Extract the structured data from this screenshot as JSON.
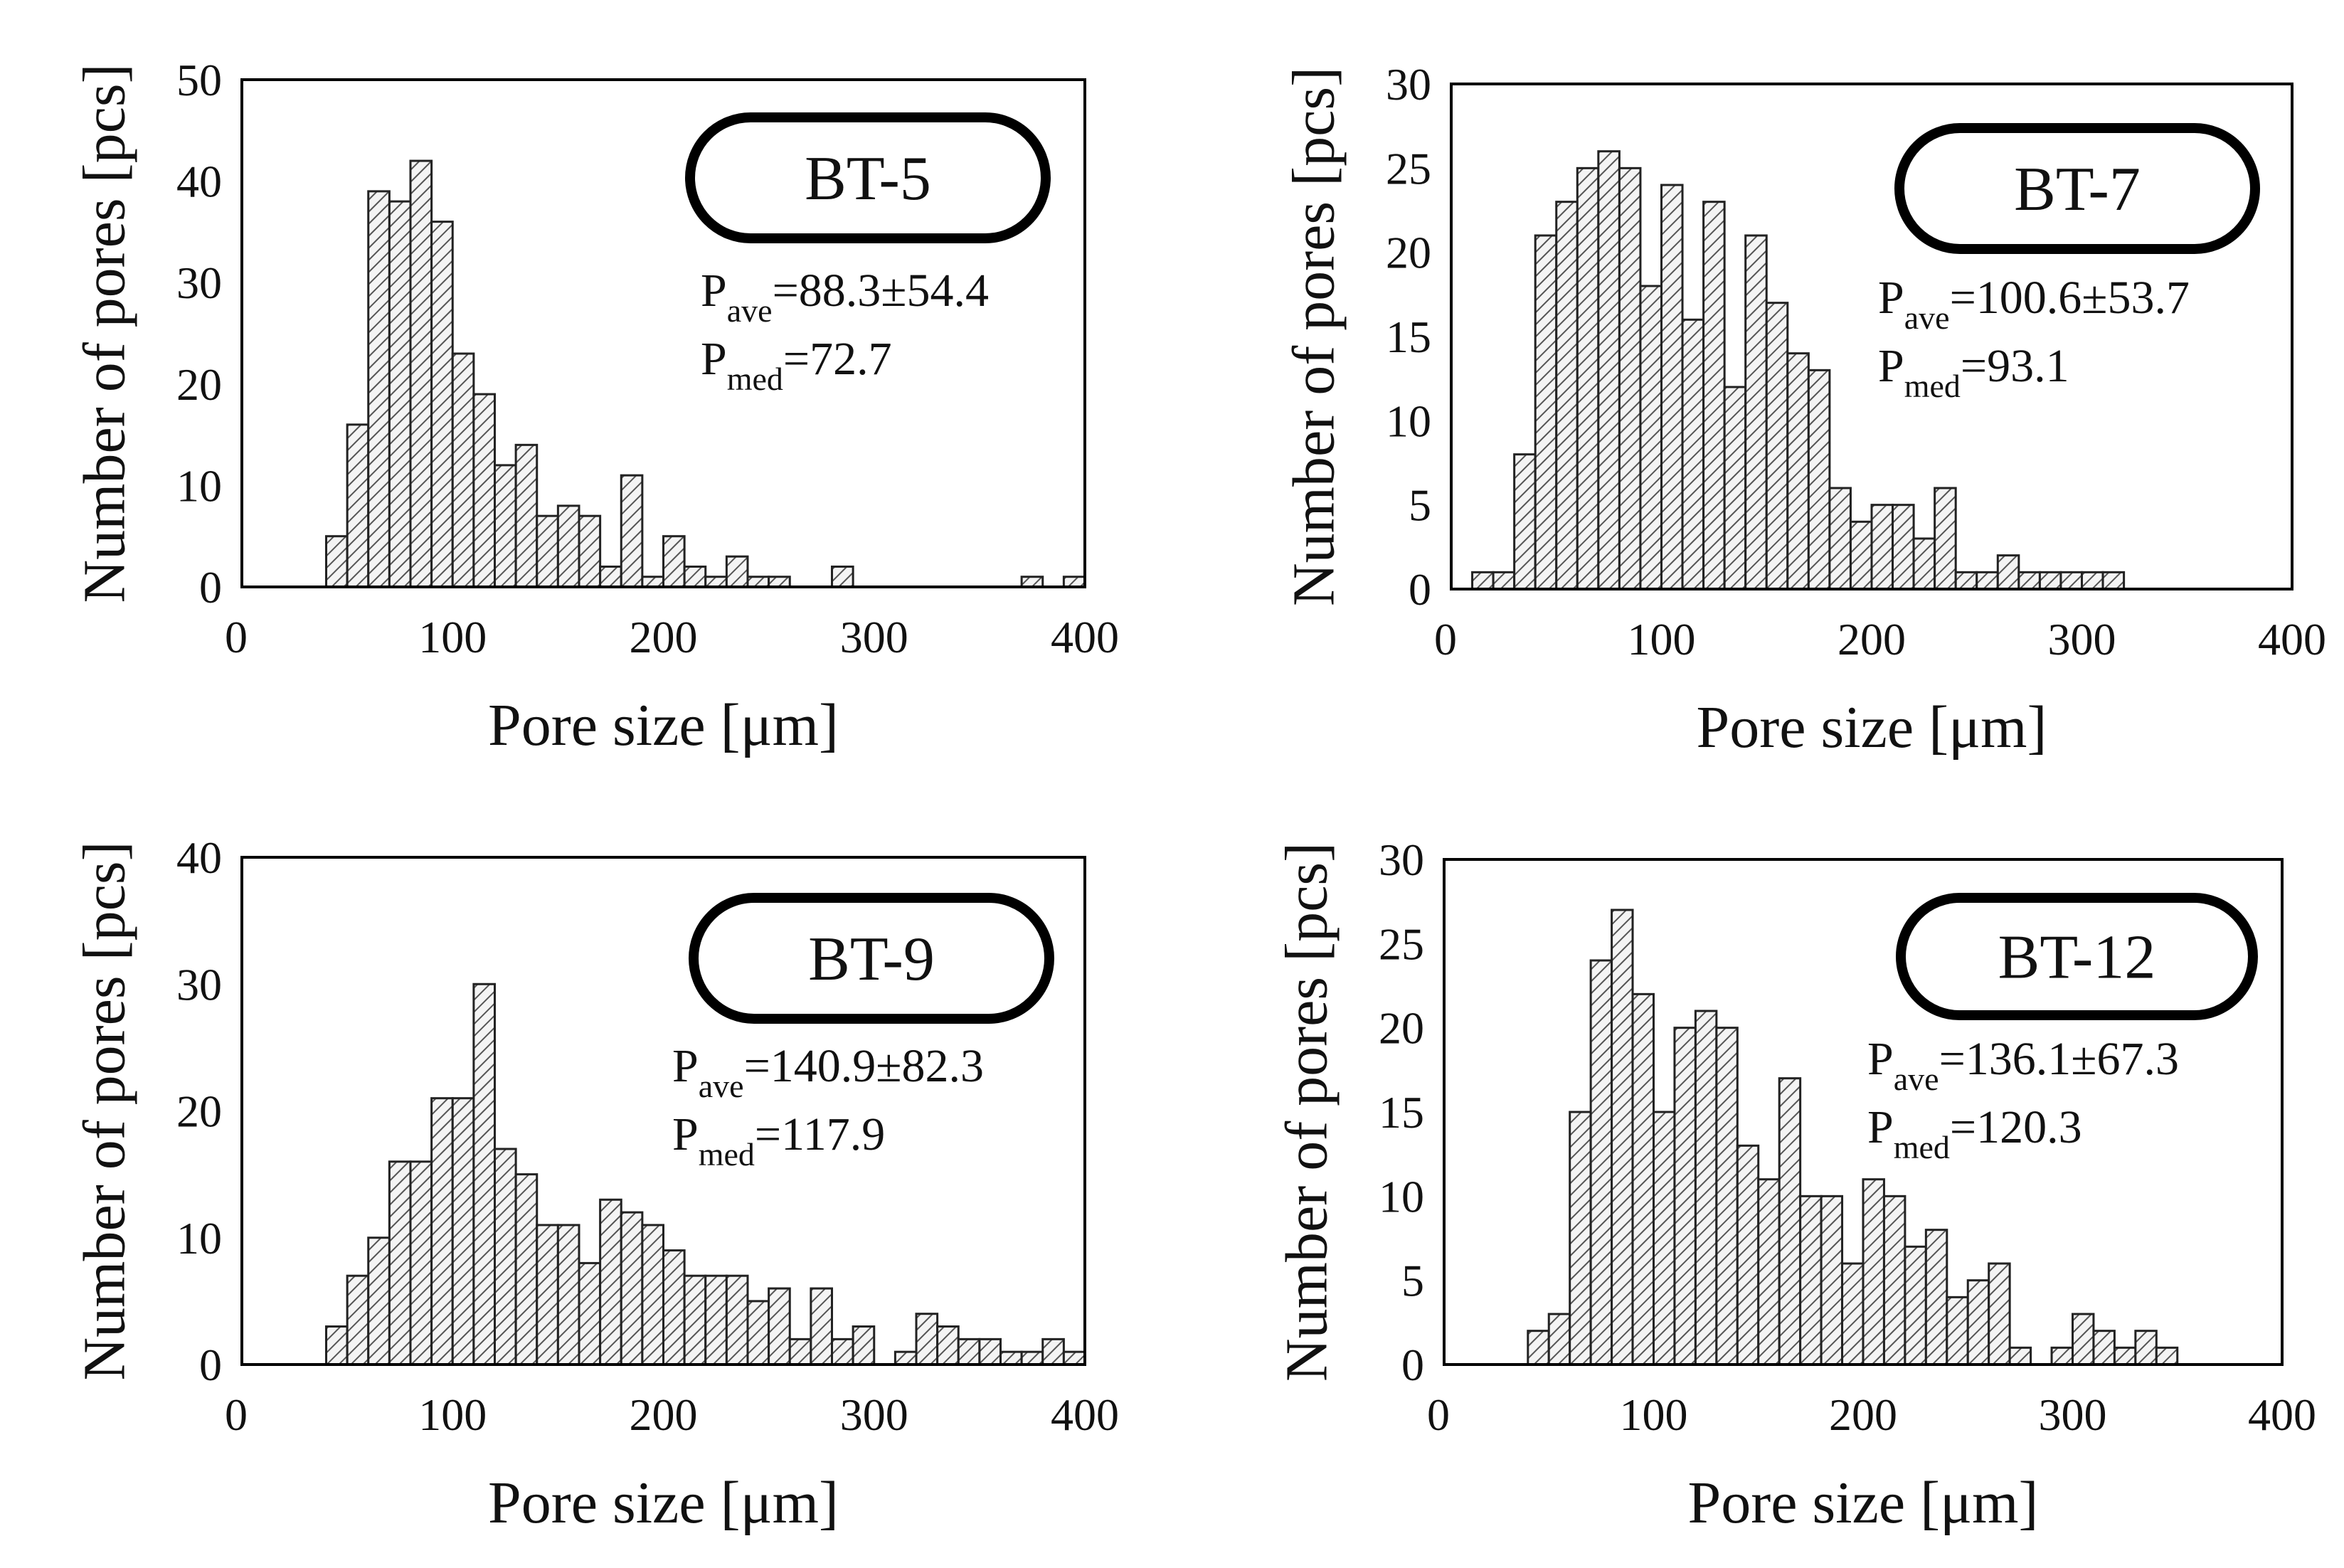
{
  "figure": {
    "hatch_color": "#555555",
    "bar_fill": "#f4f4f4",
    "frame_color": "#000000"
  },
  "chart_data": [
    {
      "type": "bar",
      "title": "BT-5",
      "label_box": "BT-5",
      "xlabel": "Pore size [μm]",
      "ylabel": "Number of pores [pcs]",
      "xlim": [
        0,
        400
      ],
      "ylim": [
        0,
        50
      ],
      "xticks": [
        "0",
        "100",
        "200",
        "300",
        "400"
      ],
      "yticks": [
        "0",
        "10",
        "20",
        "30",
        "40",
        "50"
      ],
      "bin_width": 10,
      "bin_starts": [
        40,
        50,
        60,
        70,
        80,
        90,
        100,
        110,
        120,
        130,
        140,
        150,
        160,
        170,
        180,
        190,
        200,
        210,
        220,
        230,
        240,
        250,
        280,
        370,
        390
      ],
      "values": [
        5,
        16,
        39,
        38,
        42,
        36,
        23,
        19,
        12,
        14,
        7,
        8,
        7,
        2,
        11,
        1,
        5,
        2,
        1,
        3,
        1,
        1,
        2,
        1,
        1
      ],
      "stats": {
        "ave_label": "P",
        "ave_sub": "ave",
        "ave_value": "=88.3±54.4",
        "med_label": "P",
        "med_sub": "med",
        "med_value": "=72.7"
      }
    },
    {
      "type": "bar",
      "title": "BT-7",
      "label_box": "BT-7",
      "xlabel": "Pore size [μm]",
      "ylabel": "Number of pores [pcs]",
      "xlim": [
        0,
        400
      ],
      "ylim": [
        0,
        30
      ],
      "xticks": [
        "0",
        "100",
        "200",
        "300",
        "400"
      ],
      "yticks": [
        "0",
        "5",
        "10",
        "15",
        "20",
        "25",
        "30"
      ],
      "bin_width": 10,
      "bin_starts": [
        10,
        20,
        30,
        40,
        50,
        60,
        70,
        80,
        90,
        100,
        110,
        120,
        130,
        140,
        150,
        160,
        170,
        180,
        190,
        200,
        210,
        220,
        230,
        240,
        250,
        260,
        270,
        280,
        290,
        300,
        310
      ],
      "values": [
        1,
        1,
        8,
        21,
        23,
        25,
        26,
        25,
        18,
        24,
        16,
        23,
        12,
        21,
        17,
        14,
        13,
        6,
        4,
        5,
        5,
        3,
        6,
        1,
        1,
        2,
        1,
        1,
        1,
        1,
        1
      ],
      "stats": {
        "ave_label": "P",
        "ave_sub": "ave",
        "ave_value": "=100.6±53.7",
        "med_label": "P",
        "med_sub": "med",
        "med_value": "=93.1"
      }
    },
    {
      "type": "bar",
      "title": "BT-9",
      "label_box": "BT-9",
      "xlabel": "Pore size [μm]",
      "ylabel": "Number of pores [pcs]",
      "xlim": [
        0,
        400
      ],
      "ylim": [
        0,
        40
      ],
      "xticks": [
        "0",
        "100",
        "200",
        "300",
        "400"
      ],
      "yticks": [
        "0",
        "10",
        "20",
        "30",
        "40"
      ],
      "bin_width": 10,
      "bin_starts": [
        40,
        50,
        60,
        70,
        80,
        90,
        100,
        110,
        120,
        130,
        140,
        150,
        160,
        170,
        180,
        190,
        200,
        210,
        220,
        230,
        240,
        250,
        260,
        270,
        280,
        290,
        310,
        320,
        330,
        340,
        350,
        360,
        370,
        380,
        390
      ],
      "values": [
        3,
        7,
        10,
        16,
        16,
        21,
        21,
        30,
        17,
        15,
        11,
        11,
        8,
        13,
        12,
        11,
        9,
        7,
        7,
        7,
        5,
        6,
        2,
        6,
        2,
        3,
        1,
        4,
        3,
        2,
        2,
        1,
        1,
        2,
        1
      ],
      "stats": {
        "ave_label": "P",
        "ave_sub": "ave",
        "ave_value": "=140.9±82.3",
        "med_label": "P",
        "med_sub": "med",
        "med_value": "=117.9"
      }
    },
    {
      "type": "bar",
      "title": "BT-12",
      "label_box": "BT-12",
      "xlabel": "Pore size [μm]",
      "ylabel": "Number of pores [pcs]",
      "xlim": [
        0,
        400
      ],
      "ylim": [
        0,
        30
      ],
      "xticks": [
        "0",
        "100",
        "200",
        "300",
        "400"
      ],
      "yticks": [
        "0",
        "5",
        "10",
        "15",
        "20",
        "25",
        "30"
      ],
      "bin_width": 10,
      "bin_starts": [
        40,
        50,
        60,
        70,
        80,
        90,
        100,
        110,
        120,
        130,
        140,
        150,
        160,
        170,
        180,
        190,
        200,
        210,
        220,
        230,
        240,
        250,
        260,
        270,
        290,
        300,
        310,
        320,
        330,
        340
      ],
      "values": [
        2,
        3,
        15,
        24,
        27,
        22,
        15,
        20,
        21,
        20,
        13,
        11,
        17,
        10,
        10,
        6,
        11,
        10,
        7,
        8,
        4,
        5,
        6,
        1,
        1,
        3,
        2,
        1,
        2,
        1
      ],
      "stats": {
        "ave_label": "P",
        "ave_sub": "ave",
        "ave_value": "=136.1±67.3",
        "med_label": "P",
        "med_sub": "med",
        "med_value": "=120.3"
      }
    }
  ]
}
